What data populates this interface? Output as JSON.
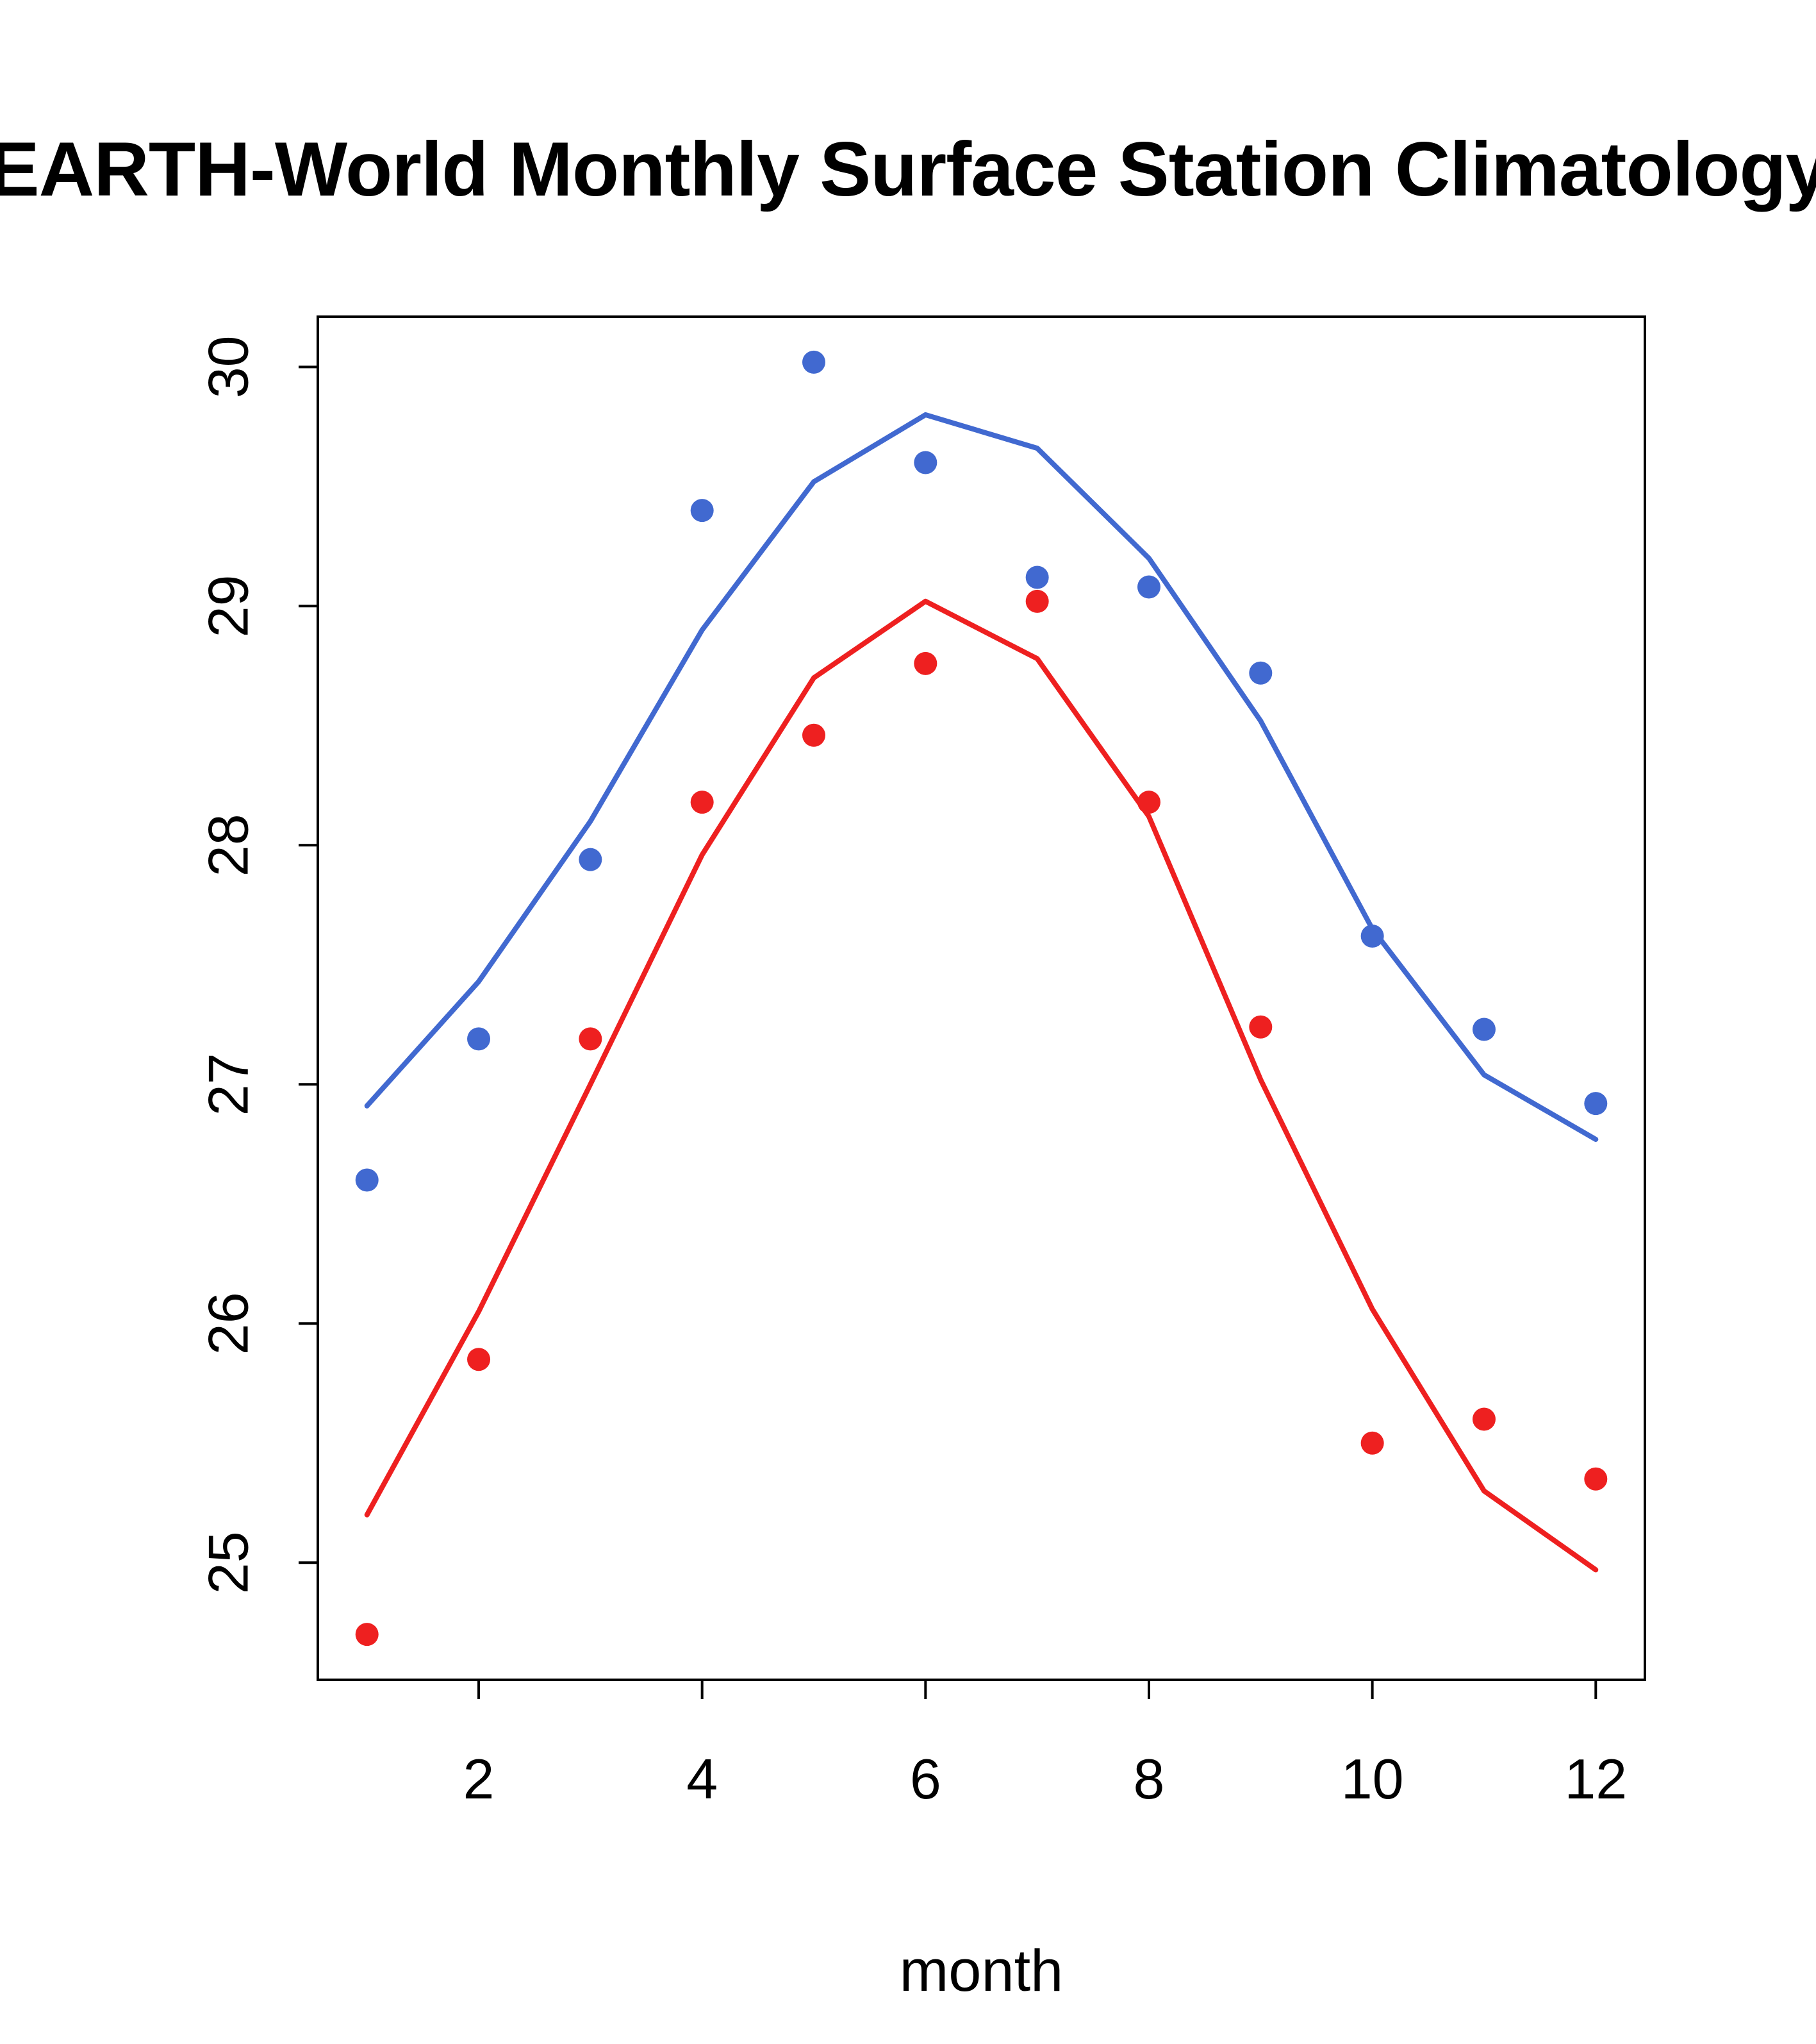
{
  "chart_data": {
    "type": "scatter",
    "title": "EARTH-World Monthly Surface Station Climatology",
    "xlabel": "month",
    "ylabel": "",
    "xlim": [
      0.56,
      12.44
    ],
    "ylim": [
      24.51,
      30.21
    ],
    "x_ticks": [
      2,
      4,
      6,
      8,
      10,
      12
    ],
    "y_ticks": [
      25,
      26,
      27,
      28,
      29,
      30
    ],
    "grid": false,
    "legend_position": "none",
    "x": [
      1,
      2,
      3,
      4,
      5,
      6,
      7,
      8,
      9,
      10,
      11,
      12
    ],
    "series": [
      {
        "name": "station-monthly-means-points",
        "style": "points",
        "color": "#4169d0",
        "values": [
          26.6,
          27.19,
          27.94,
          29.4,
          30.02,
          29.6,
          29.12,
          29.08,
          28.72,
          27.62,
          27.23,
          26.92
        ]
      },
      {
        "name": "climatology-fit-line-blue",
        "style": "line",
        "color": "#4169d0",
        "values": [
          26.91,
          27.43,
          28.1,
          28.9,
          29.52,
          29.8,
          29.66,
          29.2,
          28.52,
          27.65,
          27.04,
          26.77
        ]
      },
      {
        "name": "station-monthly-means-points-red",
        "style": "points",
        "color": "#ee2020",
        "values": [
          24.7,
          25.85,
          27.19,
          28.18,
          28.46,
          28.76,
          29.02,
          28.18,
          27.24,
          25.5,
          25.6,
          25.35
        ]
      },
      {
        "name": "climatology-fit-line-red",
        "style": "line",
        "color": "#ee2020",
        "values": [
          25.2,
          26.05,
          27.0,
          27.96,
          28.7,
          29.02,
          28.78,
          28.12,
          27.02,
          26.06,
          25.3,
          24.97
        ]
      }
    ]
  }
}
